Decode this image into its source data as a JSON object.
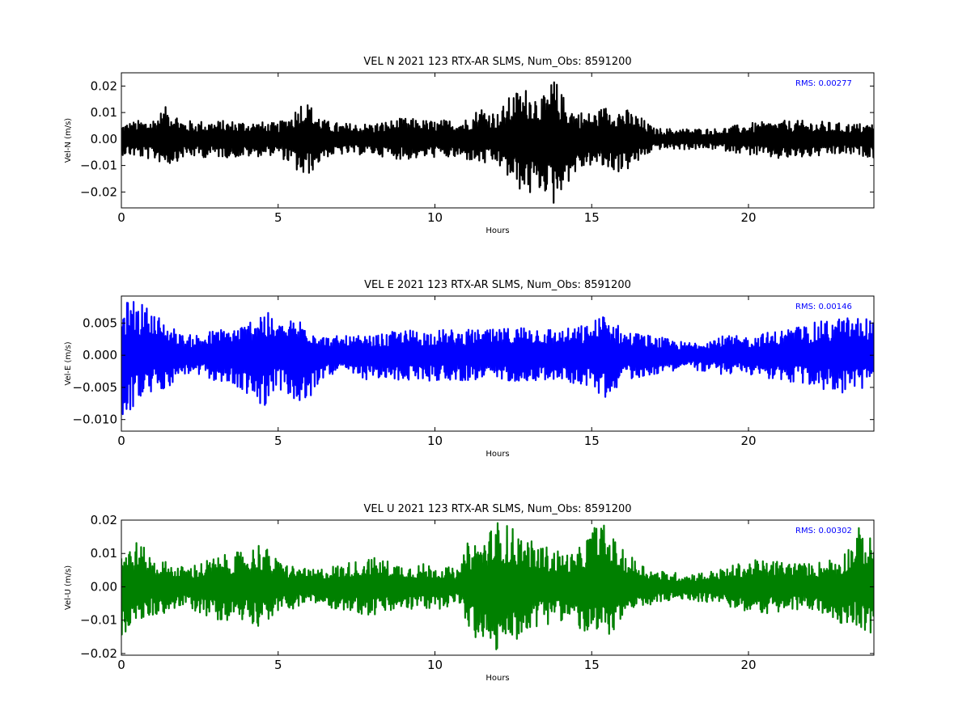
{
  "chart_data": [
    {
      "type": "line",
      "title": "VEL N 2021 123 RTX-AR  SLMS, Num_Obs: 8591200",
      "xlabel": "Hours",
      "ylabel": "Vel-N (m/s)",
      "annotation": "RMS:  0.00277",
      "color": "#000000",
      "xlim": [
        0,
        24
      ],
      "ylim": [
        -0.026,
        0.025
      ],
      "xticks": [
        0,
        5,
        10,
        15,
        20
      ],
      "xtick_labels": [
        "0",
        "5",
        "10",
        "15",
        "20"
      ],
      "yticks": [
        0.02,
        0.01,
        0.0,
        -0.01,
        -0.02
      ],
      "ytick_labels": [
        "0.02",
        "0.01",
        "0.00",
        "−0.01",
        "−0.02"
      ],
      "series": [
        {
          "x": [
            0,
            1,
            1.5,
            2,
            3,
            4,
            5,
            5.5,
            5.8,
            6.5,
            7,
            8,
            9,
            10,
            11,
            11.5,
            12,
            12.5,
            13,
            13.5,
            13.8,
            14,
            14.5,
            15,
            15.5,
            16,
            16.5,
            17,
            18,
            19,
            20,
            21,
            22,
            23,
            24
          ],
          "envelope_upper": [
            0.006,
            0.008,
            0.013,
            0.007,
            0.007,
            0.007,
            0.006,
            0.011,
            0.016,
            0.007,
            0.006,
            0.006,
            0.008,
            0.007,
            0.008,
            0.013,
            0.01,
            0.018,
            0.02,
            0.016,
            0.024,
            0.018,
            0.011,
            0.01,
            0.013,
            0.012,
            0.009,
            0.004,
            0.004,
            0.004,
            0.006,
            0.007,
            0.007,
            0.006,
            0.006
          ],
          "envelope_lower": [
            -0.006,
            -0.008,
            -0.01,
            -0.007,
            -0.007,
            -0.007,
            -0.006,
            -0.011,
            -0.016,
            -0.007,
            -0.006,
            -0.006,
            -0.008,
            -0.007,
            -0.008,
            -0.01,
            -0.01,
            -0.018,
            -0.022,
            -0.02,
            -0.026,
            -0.02,
            -0.013,
            -0.01,
            -0.012,
            -0.013,
            -0.009,
            -0.004,
            -0.004,
            -0.004,
            -0.006,
            -0.008,
            -0.007,
            -0.006,
            -0.007
          ]
        }
      ]
    },
    {
      "type": "line",
      "title": "VEL E 2021 123 RTX-AR  SLMS, Num_Obs: 8591200",
      "xlabel": "Hours",
      "ylabel": "Vel-E (m/s)",
      "annotation": "RMS:  0.00146",
      "color": "#0000ff",
      "xlim": [
        0,
        24
      ],
      "ylim": [
        -0.0118,
        0.0092
      ],
      "xticks": [
        0,
        5,
        10,
        15,
        20
      ],
      "xtick_labels": [
        "0",
        "5",
        "10",
        "15",
        "20"
      ],
      "yticks": [
        0.005,
        0.0,
        -0.005,
        -0.01
      ],
      "ytick_labels": [
        "0.005",
        "0.000",
        "−0.005",
        "−0.010"
      ],
      "series": [
        {
          "x": [
            0,
            0.4,
            1,
            1.5,
            2,
            3,
            4,
            4.4,
            5,
            5.8,
            6.5,
            7,
            8,
            9,
            10,
            11,
            12,
            13,
            14,
            15,
            15.4,
            16,
            17,
            18,
            19,
            20,
            21,
            22,
            23,
            24
          ],
          "envelope_upper": [
            0.008,
            0.009,
            0.007,
            0.005,
            0.003,
            0.004,
            0.005,
            0.008,
            0.005,
            0.006,
            0.003,
            0.003,
            0.003,
            0.004,
            0.004,
            0.004,
            0.004,
            0.005,
            0.004,
            0.005,
            0.007,
            0.004,
            0.003,
            0.002,
            0.003,
            0.003,
            0.004,
            0.005,
            0.006,
            0.006
          ],
          "envelope_lower": [
            -0.0115,
            -0.008,
            -0.006,
            -0.005,
            -0.003,
            -0.004,
            -0.006,
            -0.009,
            -0.005,
            -0.009,
            -0.003,
            -0.003,
            -0.004,
            -0.004,
            -0.004,
            -0.004,
            -0.004,
            -0.004,
            -0.004,
            -0.005,
            -0.007,
            -0.004,
            -0.003,
            -0.002,
            -0.003,
            -0.003,
            -0.004,
            -0.005,
            -0.006,
            -0.005
          ]
        }
      ]
    },
    {
      "type": "line",
      "title": "VEL U 2021 123 RTX-AR  SLMS, Num_Obs: 8591200",
      "xlabel": "Hours",
      "ylabel": "Vel-U (m/s)",
      "annotation": "RMS:  0.00302",
      "color": "#008000",
      "xlim": [
        0,
        24
      ],
      "ylim": [
        -0.0205,
        0.02
      ],
      "xticks": [
        0,
        5,
        10,
        15,
        20
      ],
      "xtick_labels": [
        "0",
        "5",
        "10",
        "15",
        "20"
      ],
      "yticks": [
        0.02,
        0.01,
        0.0,
        -0.01,
        -0.02
      ],
      "ytick_labels": [
        "0.02",
        "0.01",
        "0.00",
        "−0.01",
        "−0.02"
      ],
      "series": [
        {
          "x": [
            0,
            0.5,
            1,
            2,
            3,
            4,
            4.4,
            5,
            6,
            7,
            8,
            9,
            10,
            10.8,
            11,
            11.5,
            12,
            12.5,
            13,
            14,
            14.5,
            15,
            15.3,
            16,
            17,
            18,
            19,
            20,
            21,
            22,
            23,
            23.5,
            24
          ],
          "envelope_upper": [
            0.012,
            0.014,
            0.009,
            0.006,
            0.009,
            0.011,
            0.014,
            0.008,
            0.005,
            0.007,
            0.009,
            0.007,
            0.007,
            0.005,
            0.013,
            0.015,
            0.02,
            0.018,
            0.014,
            0.011,
            0.01,
            0.018,
            0.02,
            0.011,
            0.005,
            0.004,
            0.005,
            0.008,
            0.008,
            0.007,
            0.01,
            0.018,
            0.014
          ],
          "envelope_lower": [
            -0.015,
            -0.011,
            -0.009,
            -0.006,
            -0.01,
            -0.01,
            -0.012,
            -0.008,
            -0.005,
            -0.007,
            -0.009,
            -0.007,
            -0.007,
            -0.005,
            -0.013,
            -0.018,
            -0.02,
            -0.017,
            -0.013,
            -0.01,
            -0.012,
            -0.017,
            -0.017,
            -0.01,
            -0.005,
            -0.004,
            -0.005,
            -0.008,
            -0.008,
            -0.007,
            -0.011,
            -0.012,
            -0.015
          ]
        }
      ]
    }
  ]
}
